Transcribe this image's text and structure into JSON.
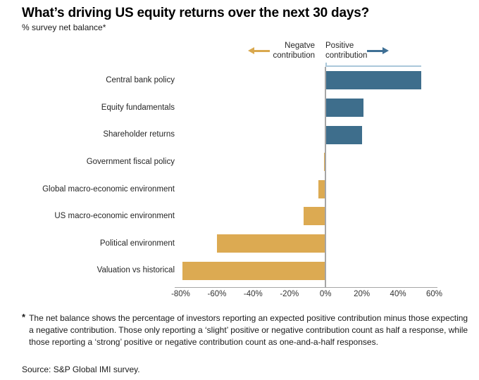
{
  "header": {
    "title": "What’s driving US equity returns over the next 30 days?",
    "subtitle": "% survey net balance*"
  },
  "legend": {
    "negative_line1": "Negatve",
    "negative_line2": "contribution",
    "positive_line1": "Positive",
    "positive_line2": "contribution",
    "negative_arrow_color": "#d9a84e",
    "positive_arrow_color": "#3f7095"
  },
  "chart_data": {
    "type": "bar",
    "orientation": "horizontal",
    "categories": [
      "Central bank policy",
      "Equity fundamentals",
      "Shareholder returns",
      "Government fiscal policy",
      "Global macro-economic environment",
      "US macro-economic environment",
      "Political environment",
      "Valuation vs historical"
    ],
    "values": [
      53,
      21,
      20,
      -1,
      -4,
      -12,
      -60,
      -79
    ],
    "xlim": [
      -80,
      60
    ],
    "xticks": [
      -80,
      -60,
      -40,
      -20,
      0,
      20,
      40,
      60
    ],
    "tick_labels": [
      "-80%",
      "-60%",
      "-40%",
      "-20%",
      "0%",
      "20%",
      "40%",
      "60%"
    ],
    "positive_color": "#3e6e8c",
    "negative_color": "#dcaa52",
    "axis_color": "#a6a6a6",
    "annotation_color": "#abc8da",
    "grid": "off",
    "title": "What’s driving US equity returns over the next 30 days?",
    "xlabel": "% survey net balance",
    "ylabel": ""
  },
  "footnote": {
    "marker": "*",
    "text": "The net balance shows the percentage of investors reporting an expected positive contribution minus those expecting a negative contribution. Those only reporting a ‘slight’ positive or negative contribution count as half a response, while those reporting a ‘strong’ positive or negative contribution count as one-and-a-half responses."
  },
  "source": "Source: S&P Global IMI survey."
}
